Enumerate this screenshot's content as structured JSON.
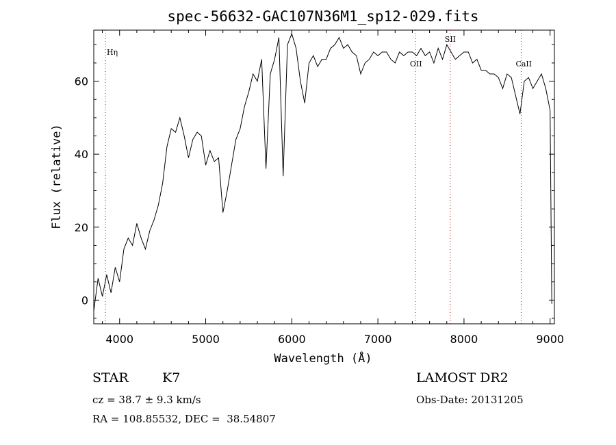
{
  "chart_data": {
    "type": "line",
    "title": "spec-56632-GAC107N36M1_sp12-029.fits",
    "xlabel": "Wavelength (Å)",
    "ylabel": "Flux (relative)",
    "xlim": [
      3700,
      9050
    ],
    "ylim": [
      -6.5,
      74
    ],
    "xticks": [
      "4000",
      "5000",
      "6000",
      "7000",
      "8000",
      "9000"
    ],
    "yticks": [
      "0",
      "20",
      "40",
      "60"
    ],
    "line_color": "#000000",
    "marker_color": "#cc0000",
    "lines": [
      {
        "name": "Hη",
        "wavelength": 3835
      },
      {
        "name": "OII",
        "wavelength": 7435
      },
      {
        "name": "SII",
        "wavelength": 7840
      },
      {
        "name": "CaII",
        "wavelength": 8664
      }
    ],
    "x": [
      3700,
      3750,
      3800,
      3850,
      3900,
      3950,
      4000,
      4050,
      4100,
      4150,
      4200,
      4250,
      4300,
      4350,
      4400,
      4450,
      4500,
      4550,
      4600,
      4650,
      4700,
      4750,
      4800,
      4850,
      4900,
      4950,
      5000,
      5050,
      5100,
      5150,
      5200,
      5250,
      5300,
      5350,
      5400,
      5450,
      5500,
      5550,
      5600,
      5650,
      5700,
      5750,
      5800,
      5850,
      5900,
      5950,
      6000,
      6050,
      6100,
      6150,
      6200,
      6250,
      6300,
      6350,
      6400,
      6450,
      6500,
      6550,
      6600,
      6650,
      6700,
      6750,
      6800,
      6850,
      6900,
      6950,
      7000,
      7050,
      7100,
      7150,
      7200,
      7250,
      7300,
      7350,
      7400,
      7450,
      7500,
      7550,
      7600,
      7650,
      7700,
      7750,
      7800,
      7850,
      7900,
      7950,
      8000,
      8050,
      8100,
      8150,
      8200,
      8250,
      8300,
      8350,
      8400,
      8450,
      8500,
      8550,
      8600,
      8650,
      8700,
      8750,
      8800,
      8850,
      8900,
      8950,
      9000,
      9020
    ],
    "y": [
      -3,
      6,
      1,
      7,
      2,
      9,
      5,
      14,
      17,
      15,
      21,
      17,
      14,
      19,
      22,
      26,
      32,
      42,
      47,
      46,
      50,
      45,
      39,
      44,
      46,
      45,
      37,
      41,
      38,
      39,
      24,
      30,
      37,
      44,
      47,
      53,
      57,
      62,
      60,
      66,
      36,
      62,
      66,
      72,
      34,
      70,
      73,
      69,
      60,
      54,
      65,
      67,
      64,
      66,
      66,
      69,
      70,
      72,
      69,
      70,
      68,
      67,
      62,
      65,
      66,
      68,
      67,
      68,
      68,
      66,
      65,
      68,
      67,
      68,
      68,
      67,
      69,
      67,
      68,
      65,
      69,
      66,
      70,
      68,
      66,
      67,
      68,
      68,
      65,
      66,
      63,
      63,
      62,
      62,
      61,
      58,
      62,
      61,
      56,
      51,
      60,
      61,
      58,
      60,
      62,
      58,
      52,
      -1
    ],
    "info": {
      "class": "STAR",
      "subclass": "K7",
      "survey": "LAMOST DR2",
      "cz": "cz = 38.7 ± 9.3 km/s",
      "obs_date": "Obs-Date: 20131205",
      "coords": "RA = 108.85532, DEC =  38.54807"
    }
  }
}
